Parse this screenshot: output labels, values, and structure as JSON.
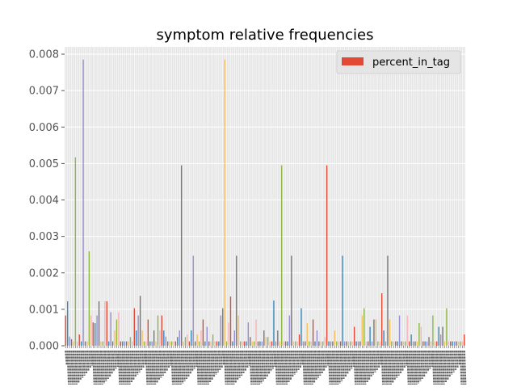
{
  "chart_data": {
    "type": "bar",
    "title": "symptom relative frequencies",
    "xlabel": "",
    "ylabel": "",
    "ylim": [
      0,
      0.0082
    ],
    "yticks": [
      "0.000",
      "0.001",
      "0.002",
      "0.003",
      "0.004",
      "0.005",
      "0.006",
      "0.007",
      "0.008"
    ],
    "legend": {
      "position": "top-right",
      "label": "percent_in_tag"
    },
    "grid": true,
    "palette": [
      "#e24a33",
      "#348abd",
      "#988ed5",
      "#777777",
      "#fbc15e",
      "#8eba42",
      "#ffb5b8"
    ],
    "series": [
      {
        "name": "percent_in_tag",
        "values": [
          0.00083,
          0.00122,
          0.00025,
          0.00018,
          0.00012,
          0.00517,
          0.00012,
          0.00031,
          0.00012,
          0.00785,
          0.00012,
          0.00012,
          0.00259,
          0.00083,
          0.00064,
          0.00062,
          0.00083,
          0.00122,
          0.00012,
          0.00012,
          0.00122,
          0.00122,
          0.00012,
          0.00092,
          0.00012,
          0.00042,
          0.00072,
          0.00092,
          0.00012,
          0.00012,
          0.00012,
          0.00012,
          0.00012,
          0.00024,
          0.00012,
          0.00103,
          0.00042,
          0.00083,
          0.00137,
          0.00042,
          0.00012,
          0.00012,
          0.00072,
          0.00012,
          0.00012,
          0.00042,
          0.00012,
          0.00083,
          0.00042,
          0.00083,
          0.00042,
          0.00025,
          0.00012,
          0.00012,
          0.00012,
          0.00012,
          0.00012,
          0.00024,
          0.00042,
          0.00495,
          0.00012,
          0.00024,
          0.00031,
          0.00012,
          0.00042,
          0.00247,
          0.00012,
          0.00031,
          0.00012,
          0.00042,
          0.00072,
          0.00012,
          0.00052,
          0.00012,
          0.00012,
          0.00031,
          0.00012,
          0.00012,
          0.00012,
          0.00083,
          0.00103,
          0.00785,
          0.00012,
          0.00064,
          0.00135,
          0.00012,
          0.00042,
          0.00247,
          0.00083,
          0.00012,
          0.00012,
          0.00012,
          0.00012,
          0.00064,
          0.00024,
          0.00012,
          0.00012,
          0.00072,
          0.00012,
          0.00012,
          0.00012,
          0.00042,
          0.00024,
          0.00024,
          0.00012,
          0.00012,
          0.00124,
          0.00012,
          0.00042,
          0.00012,
          0.00495,
          0.00012,
          0.00012,
          0.00012,
          0.00083,
          0.00247,
          0.00012,
          0.00012,
          0.00012,
          0.00031,
          0.00103,
          0.00012,
          0.00012,
          0.00062,
          0.00012,
          0.00012,
          0.00072,
          0.00012,
          0.00042,
          0.00012,
          0.00012,
          0.00012,
          0.00024,
          0.00495,
          0.00012,
          0.00012,
          0.00012,
          0.00042,
          0.00012,
          0.00012,
          0.00012,
          0.00247,
          0.00012,
          0.00012,
          0.00012,
          0.00012,
          0.00012,
          0.00052,
          0.00012,
          0.00012,
          0.00012,
          0.00083,
          0.00103,
          0.00012,
          0.00012,
          0.00052,
          0.00012,
          0.00072,
          0.00072,
          0.00012,
          0.00012,
          0.00144,
          0.00042,
          0.00012,
          0.00247,
          0.00072,
          0.00012,
          0.00012,
          0.00012,
          0.00012,
          0.00083,
          0.00012,
          0.00012,
          0.00012,
          0.00083,
          0.00012,
          0.00031,
          0.00012,
          0.00012,
          0.00012,
          0.00062,
          0.00052,
          0.00012,
          0.00012,
          0.00012,
          0.00024,
          0.00012,
          0.00083,
          0.00012,
          0.00012,
          0.00052,
          0.00031,
          0.00052,
          0.00012,
          0.00103,
          0.00012,
          0.00012,
          0.00012,
          0.00012,
          0.00012,
          0.00012,
          0.00012,
          0.00012,
          0.00031
        ]
      }
    ]
  }
}
